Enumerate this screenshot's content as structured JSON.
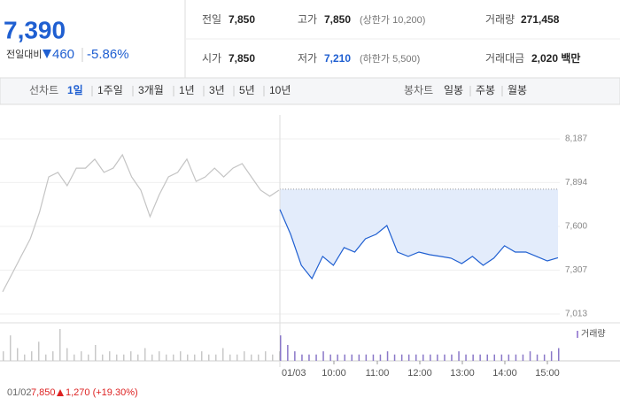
{
  "quote": {
    "price": "7,390",
    "change_label": "전일대비",
    "change": "460",
    "change_pct": "-5.86%"
  },
  "summary": [
    [
      {
        "label": "전일",
        "value": "7,850"
      },
      {
        "label": "고가",
        "value": "7,850",
        "note": "(상한가 10,200)"
      },
      {
        "label": "거래량",
        "value": "271,458"
      }
    ],
    [
      {
        "label": "시가",
        "value": "7,850"
      },
      {
        "label": "저가",
        "value": "7,210",
        "note": "(하한가 5,500)"
      },
      {
        "label": "거래대금",
        "value": "2,020 백만"
      }
    ]
  ],
  "tabs": {
    "line_label": "선차트",
    "line_periods": [
      "1일",
      "1주일",
      "3개월",
      "1년",
      "3년",
      "5년",
      "10년"
    ],
    "candle_label": "봉차트",
    "candle_periods": [
      "일봉",
      "주봉",
      "월봉"
    ]
  },
  "footer": {
    "date": "01/02",
    "close": "7,850",
    "change": "1,270 (+19.30%)"
  },
  "chart_data": {
    "type": "line",
    "ylim": [
      7013,
      8187
    ],
    "yticks": [
      {
        "value": 7013,
        "label": "7,013"
      },
      {
        "value": 7307,
        "label": "7,307"
      },
      {
        "value": 7600,
        "label": "7,600"
      },
      {
        "value": 7894,
        "label": "7,894"
      },
      {
        "value": 8187,
        "label": "8,187"
      }
    ],
    "reference": 7850,
    "xlabels": [
      "10:00",
      "11:00",
      "12:00",
      "13:00",
      "14:00",
      "15:00"
    ],
    "series": [
      {
        "name": "01/02",
        "color": "#c4c4c4",
        "values": [
          7162,
          7280,
          7399,
          7517,
          7695,
          7932,
          7962,
          7873,
          7991,
          7991,
          8051,
          7962,
          7991,
          8080,
          7932,
          7843,
          7665,
          7813,
          7932,
          7962,
          8051,
          7902,
          7932,
          7991,
          7932,
          7991,
          8021,
          7932,
          7843,
          7802,
          7843
        ]
      },
      {
        "name": "01/03",
        "color": "#1f5fd1",
        "values": [
          7713,
          7547,
          7339,
          7250,
          7399,
          7339,
          7458,
          7428,
          7517,
          7547,
          7606,
          7428,
          7399,
          7428,
          7410,
          7399,
          7387,
          7351,
          7399,
          7339,
          7387,
          7470,
          7428,
          7428,
          7399,
          7369,
          7390
        ]
      }
    ],
    "volume": {
      "label": "거래량",
      "values": [
        3,
        8,
        4,
        2,
        3,
        6,
        2,
        3,
        10,
        4,
        2,
        3,
        2,
        5,
        2,
        3,
        2,
        2,
        3,
        2,
        4,
        2,
        3,
        2,
        2,
        3,
        2,
        2,
        3,
        2,
        2,
        4,
        2,
        2,
        3,
        2,
        2,
        3,
        2,
        3,
        8,
        5,
        3,
        2,
        2,
        2,
        3,
        2,
        2,
        2,
        2,
        2,
        2,
        2,
        2,
        3,
        2,
        2,
        2,
        2,
        2,
        2,
        2,
        2,
        2,
        3,
        2,
        2,
        2,
        2,
        2,
        2,
        2,
        2,
        2,
        3,
        2,
        2,
        3,
        4
      ]
    }
  }
}
